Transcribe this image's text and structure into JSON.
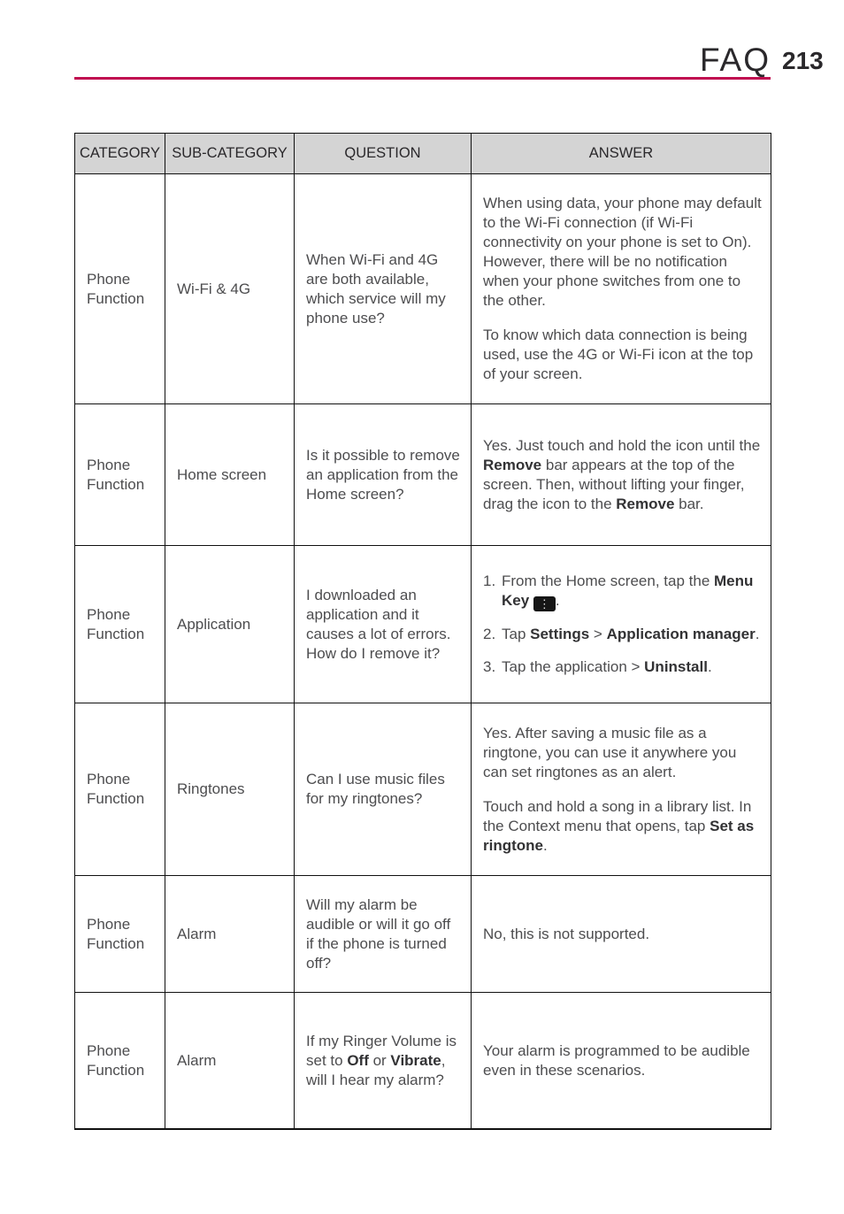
{
  "header": {
    "title": "FAQ",
    "page_number": "213"
  },
  "accent_color": "#c00c50",
  "table": {
    "columns": [
      "CATEGORY",
      "SUB-CATEGORY",
      "QUESTION",
      "ANSWER"
    ],
    "rows": [
      {
        "category": "Phone Function",
        "sub_category": "Wi-Fi & 4G",
        "question": [
          {
            "type": "p",
            "segments": [
              {
                "t": "When Wi-Fi and 4G are both available, which service will my phone use?"
              }
            ]
          }
        ],
        "answer": [
          {
            "type": "p",
            "segments": [
              {
                "t": "When using data, your phone may default to the Wi-Fi connection (if Wi-Fi connectivity on your phone is set to On). However, there will be no notification when your phone switches from one to the other."
              }
            ]
          },
          {
            "type": "p",
            "segments": [
              {
                "t": "To know which data connection is being used, use the 4G or Wi-Fi icon at the top of your screen."
              }
            ]
          }
        ]
      },
      {
        "category": "Phone Function",
        "sub_category": "Home screen",
        "question": [
          {
            "type": "p",
            "segments": [
              {
                "t": "Is it possible to remove an application from the Home screen?"
              }
            ]
          }
        ],
        "answer": [
          {
            "type": "p",
            "segments": [
              {
                "t": "Yes. Just touch and hold the icon until the "
              },
              {
                "t": "Remove",
                "b": true
              },
              {
                "t": " bar appears at the top of the screen. Then, without lifting your finger, drag the icon to the "
              },
              {
                "t": "Remove",
                "b": true
              },
              {
                "t": " bar."
              }
            ]
          }
        ]
      },
      {
        "category": "Phone Function",
        "sub_category": "Application",
        "question": [
          {
            "type": "p",
            "segments": [
              {
                "t": "I downloaded an application and it causes a lot of errors. How do I remove it?"
              }
            ]
          }
        ],
        "answer": [
          {
            "type": "li",
            "num": "1.",
            "segments": [
              {
                "t": "From the Home screen, tap the "
              },
              {
                "t": "Menu Key",
                "b": true
              },
              {
                "t": " "
              },
              {
                "icon": "menu-key"
              },
              {
                "t": "."
              }
            ]
          },
          {
            "type": "li",
            "num": "2.",
            "segments": [
              {
                "t": "Tap "
              },
              {
                "t": "Settings",
                "b": true
              },
              {
                "t": " > "
              },
              {
                "t": "Application manager",
                "b": true
              },
              {
                "t": "."
              }
            ]
          },
          {
            "type": "li",
            "num": "3.",
            "segments": [
              {
                "t": "Tap the application > "
              },
              {
                "t": "Uninstall",
                "b": true
              },
              {
                "t": "."
              }
            ]
          }
        ]
      },
      {
        "category": "Phone Function",
        "sub_category": "Ringtones",
        "question": [
          {
            "type": "p",
            "segments": [
              {
                "t": "Can I use music files for my ringtones?"
              }
            ]
          }
        ],
        "answer": [
          {
            "type": "p",
            "segments": [
              {
                "t": "Yes. After saving a music file as a ringtone, you can use it anywhere you can set ringtones as an alert."
              }
            ]
          },
          {
            "type": "p",
            "segments": [
              {
                "t": "Touch and hold a song in a library list. In the Context menu that opens, tap "
              },
              {
                "t": "Set as ringtone",
                "b": true
              },
              {
                "t": "."
              }
            ]
          }
        ]
      },
      {
        "category": "Phone Function",
        "sub_category": "Alarm",
        "question": [
          {
            "type": "p",
            "segments": [
              {
                "t": "Will my alarm be audible or will it go off if the phone is turned off?"
              }
            ]
          }
        ],
        "answer": [
          {
            "type": "p",
            "segments": [
              {
                "t": "No, this is not supported."
              }
            ]
          }
        ]
      },
      {
        "category": "Phone Function",
        "sub_category": "Alarm",
        "question": [
          {
            "type": "p",
            "segments": [
              {
                "t": "If my Ringer Volume is set to "
              },
              {
                "t": "Off",
                "b": true
              },
              {
                "t": " or "
              },
              {
                "t": "Vibrate",
                "b": true
              },
              {
                "t": ", will I hear my alarm?"
              }
            ]
          }
        ],
        "answer": [
          {
            "type": "p",
            "segments": [
              {
                "t": "Your alarm is programmed to be audible even in these scenarios."
              }
            ]
          }
        ]
      }
    ]
  },
  "icons": {
    "menu_key_glyph": "⋮"
  }
}
